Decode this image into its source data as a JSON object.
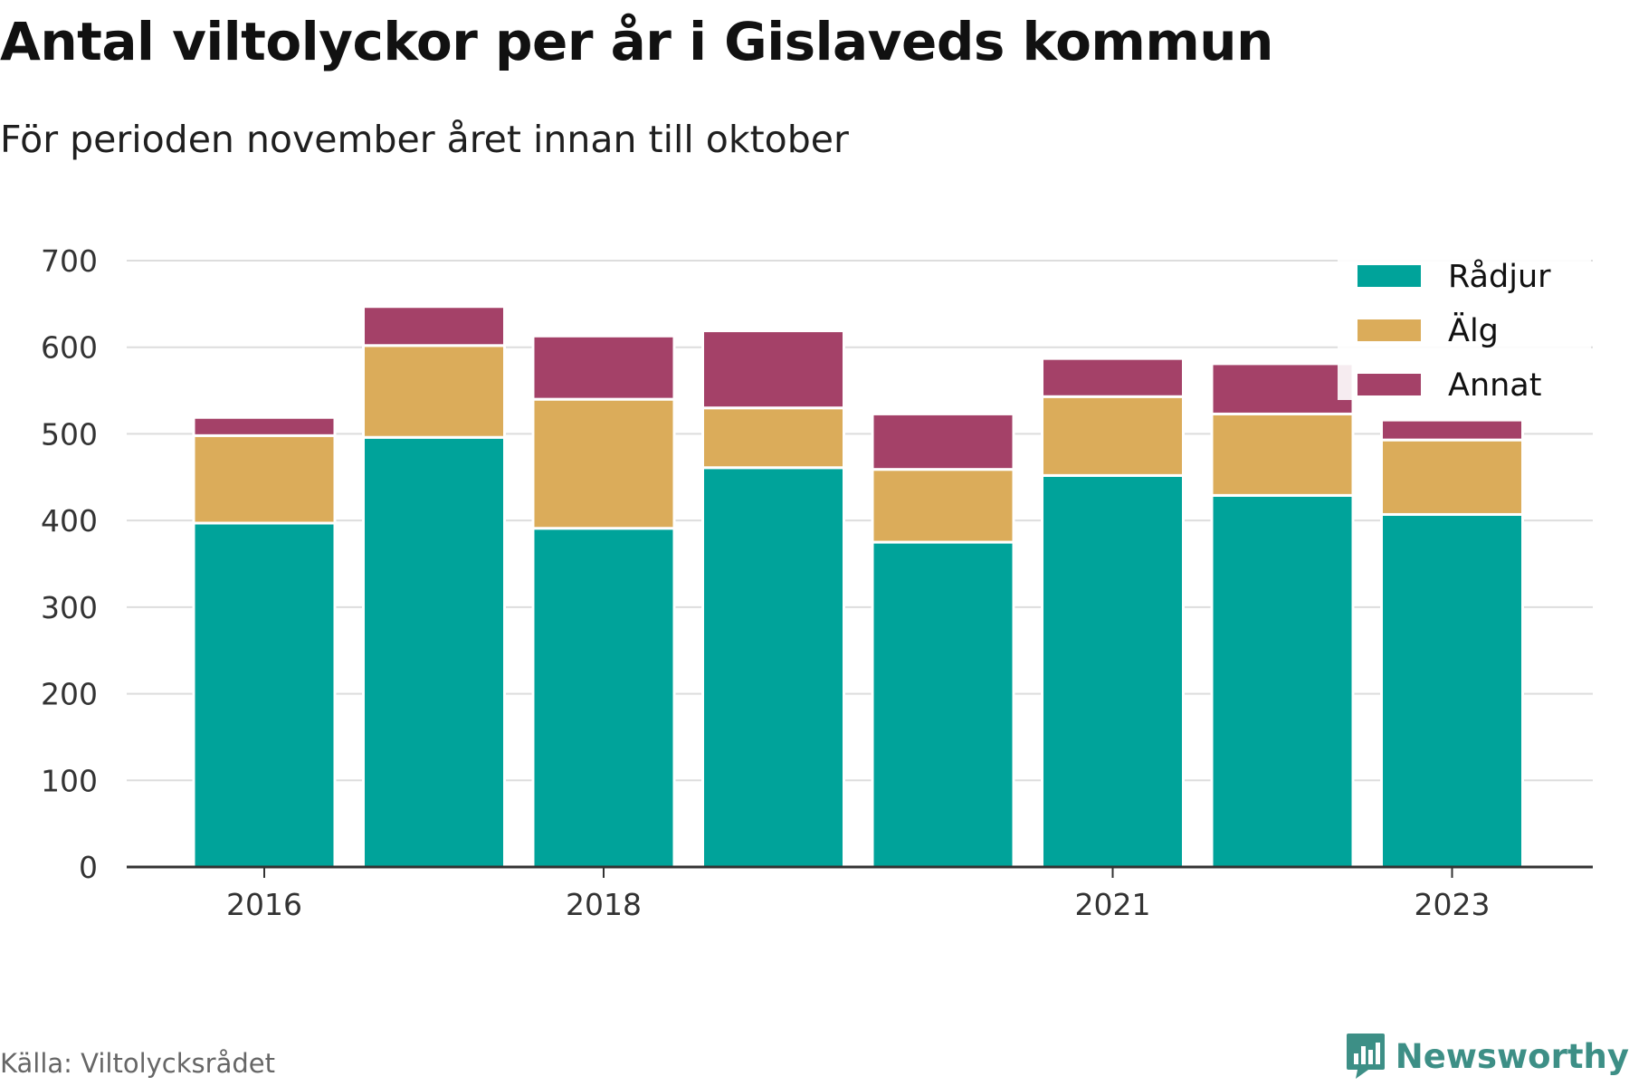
{
  "title": "Antal viltolyckor per år i Gislaveds kommun",
  "subtitle": "För perioden november året innan till oktober",
  "source": "Källa: Viltolycksrådet",
  "brand": {
    "name": "Newsworthy",
    "icon": "newsworthy-logo-icon"
  },
  "colors": {
    "Rådjur": "#00a39a",
    "Älg": "#dbac5a",
    "Annat": "#a44168",
    "grid": "#dddddd",
    "axis": "#333333"
  },
  "chart_data": {
    "type": "bar",
    "stacked": true,
    "title": "Antal viltolyckor per år i Gislaveds kommun",
    "xlabel": "",
    "ylabel": "",
    "categories": [
      2016,
      2017,
      2018,
      2019,
      2020,
      2021,
      2022,
      2023
    ],
    "x_tick_labels": [
      "2016",
      "2018",
      "2021",
      "2023"
    ],
    "y_ticks": [
      0,
      100,
      200,
      300,
      400,
      500,
      600,
      700
    ],
    "ylim": [
      0,
      700
    ],
    "grid": true,
    "legend_position": "top-right",
    "series": [
      {
        "name": "Rådjur",
        "color": "#00a39a",
        "values": [
          397,
          496,
          391,
          461,
          375,
          452,
          429,
          407
        ]
      },
      {
        "name": "Älg",
        "color": "#dbac5a",
        "values": [
          101,
          106,
          149,
          69,
          84,
          91,
          94,
          86
        ]
      },
      {
        "name": "Annat",
        "color": "#a44168",
        "values": [
          21,
          45,
          73,
          89,
          64,
          44,
          58,
          23
        ]
      }
    ]
  }
}
